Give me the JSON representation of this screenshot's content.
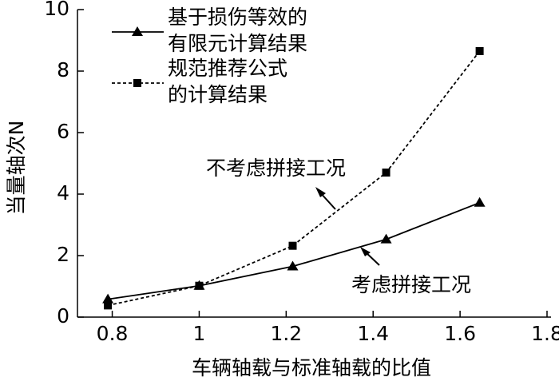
{
  "chart_data": {
    "type": "line",
    "xlabel": "车辆轴载与标准轴载的比值",
    "ylabel": "当量轴次N",
    "xlim": [
      0.72,
      1.8
    ],
    "xticks": [
      0.8,
      1,
      1.2,
      1.4,
      1.6,
      1.8
    ],
    "ylim": [
      0,
      10
    ],
    "yticks": [
      0,
      2,
      4,
      6,
      8,
      10
    ],
    "series": [
      {
        "name": "基于损伤等效的\n有限元计算结果",
        "color": "#000000",
        "marker": "triangle",
        "dash": "solid",
        "x": [
          0.79,
          1.0,
          1.215,
          1.43,
          1.645
        ],
        "values": [
          0.58,
          1.02,
          1.65,
          2.53,
          3.72
        ]
      },
      {
        "name": "规范推荐公式\n的计算结果",
        "color": "#000000",
        "marker": "square",
        "dash": "dashed",
        "x": [
          0.79,
          1.0,
          1.215,
          1.43,
          1.645
        ],
        "values": [
          0.38,
          1.02,
          2.32,
          4.7,
          8.65
        ]
      }
    ],
    "annotations": [
      "不考虑拼接工况",
      "考虑拼接工况"
    ]
  }
}
